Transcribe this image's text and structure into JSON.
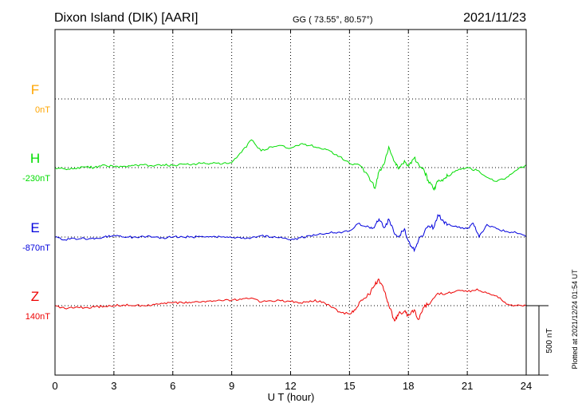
{
  "chart_data": {
    "type": "line",
    "title": "Dixon Island (DIK)  [AARI]",
    "coords": "GG ( 73.55°,  80.57°)",
    "date": "2021/11/23",
    "xlabel": "U T (hour)",
    "xlim": [
      0,
      24
    ],
    "xticks": [
      0,
      3,
      6,
      9,
      12,
      15,
      18,
      21,
      24
    ],
    "scale_bar_label": "500 nT",
    "scale_bar_nT": 500,
    "plotted_note": "Plotted at 2021/12/24 01:54 UT",
    "grid": "dotted",
    "colors": {
      "F": "#ffa500",
      "H": "#00dd00",
      "E": "#0000dd",
      "Z": "#ee0000"
    },
    "series": [
      {
        "name": "F",
        "baseline_label": "0nT",
        "x": [],
        "values": []
      },
      {
        "name": "H",
        "baseline_label": "-230nT",
        "x": [
          0,
          0.5,
          1,
          1.5,
          2,
          2.5,
          3,
          3.5,
          4,
          4.5,
          5,
          5.5,
          6,
          6.5,
          7,
          7.5,
          8,
          8.5,
          9,
          9.5,
          10,
          10.5,
          11,
          11.5,
          12,
          12.5,
          13,
          13.5,
          14,
          14.5,
          15,
          15.5,
          16,
          16.3,
          16.5,
          16.8,
          17,
          17.3,
          17.5,
          17.8,
          18,
          18.3,
          18.5,
          18.8,
          19,
          19.3,
          19.5,
          19.8,
          20,
          20.5,
          21,
          21.5,
          22,
          22.5,
          23,
          23.5,
          24
        ],
        "values": [
          -230,
          -240,
          -235,
          -225,
          -230,
          -210,
          -225,
          -220,
          -215,
          -210,
          -220,
          -210,
          -215,
          -205,
          -205,
          -200,
          -200,
          -205,
          -195,
          -120,
          -30,
          -110,
          -80,
          -70,
          -90,
          -60,
          -70,
          -90,
          -110,
          -150,
          -200,
          -210,
          -300,
          -380,
          -260,
          -190,
          -80,
          -190,
          -240,
          -180,
          -220,
          -160,
          -200,
          -250,
          -320,
          -390,
          -330,
          -310,
          -290,
          -250,
          -230,
          -250,
          -300,
          -330,
          -300,
          -250,
          -210
        ]
      },
      {
        "name": "E",
        "baseline_label": "-870nT",
        "x": [
          0,
          0.5,
          1,
          1.5,
          2,
          2.5,
          3,
          3.5,
          4,
          4.5,
          5,
          5.5,
          6,
          6.5,
          7,
          7.5,
          8,
          8.5,
          9,
          9.5,
          10,
          10.5,
          11,
          11.5,
          12,
          12.5,
          13,
          13.5,
          14,
          14.5,
          15,
          15.5,
          16,
          16.3,
          16.5,
          16.8,
          17,
          17.3,
          17.5,
          17.8,
          18,
          18.3,
          18.5,
          18.8,
          19,
          19.3,
          19.5,
          19.8,
          20,
          20.5,
          21,
          21.3,
          21.6,
          22,
          22.5,
          23,
          23.5,
          24
        ],
        "values": [
          -870,
          -890,
          -880,
          -880,
          -885,
          -870,
          -860,
          -870,
          -870,
          -865,
          -870,
          -875,
          -870,
          -870,
          -870,
          -865,
          -870,
          -870,
          -875,
          -880,
          -875,
          -860,
          -870,
          -870,
          -890,
          -875,
          -860,
          -845,
          -840,
          -835,
          -825,
          -770,
          -800,
          -790,
          -740,
          -800,
          -740,
          -850,
          -870,
          -810,
          -900,
          -970,
          -900,
          -840,
          -790,
          -800,
          -710,
          -760,
          -780,
          -800,
          -810,
          -770,
          -870,
          -780,
          -810,
          -830,
          -840,
          -870
        ]
      },
      {
        "name": "Z",
        "baseline_label": "140nT",
        "x": [
          0,
          0.5,
          1,
          1.5,
          2,
          2.5,
          3,
          3.5,
          4,
          4.5,
          5,
          5.5,
          6,
          6.5,
          7,
          7.5,
          8,
          8.5,
          9,
          9.5,
          10,
          10.5,
          11,
          11.5,
          12,
          12.5,
          13,
          13.5,
          14,
          14.5,
          15,
          15.3,
          15.6,
          16,
          16.3,
          16.5,
          16.8,
          17,
          17.3,
          17.5,
          17.8,
          18,
          18.3,
          18.5,
          18.8,
          19,
          19.5,
          20,
          20.5,
          21,
          21.5,
          22,
          22.5,
          23,
          23.5,
          24
        ],
        "values": [
          140,
          120,
          125,
          125,
          130,
          135,
          140,
          145,
          140,
          140,
          150,
          155,
          160,
          160,
          165,
          170,
          170,
          175,
          180,
          185,
          195,
          165,
          175,
          175,
          170,
          160,
          175,
          175,
          140,
          95,
          80,
          110,
          180,
          220,
          290,
          330,
          240,
          140,
          30,
          80,
          100,
          70,
          110,
          40,
          130,
          150,
          230,
          230,
          250,
          240,
          260,
          230,
          210,
          150,
          140,
          140
        ]
      }
    ]
  }
}
